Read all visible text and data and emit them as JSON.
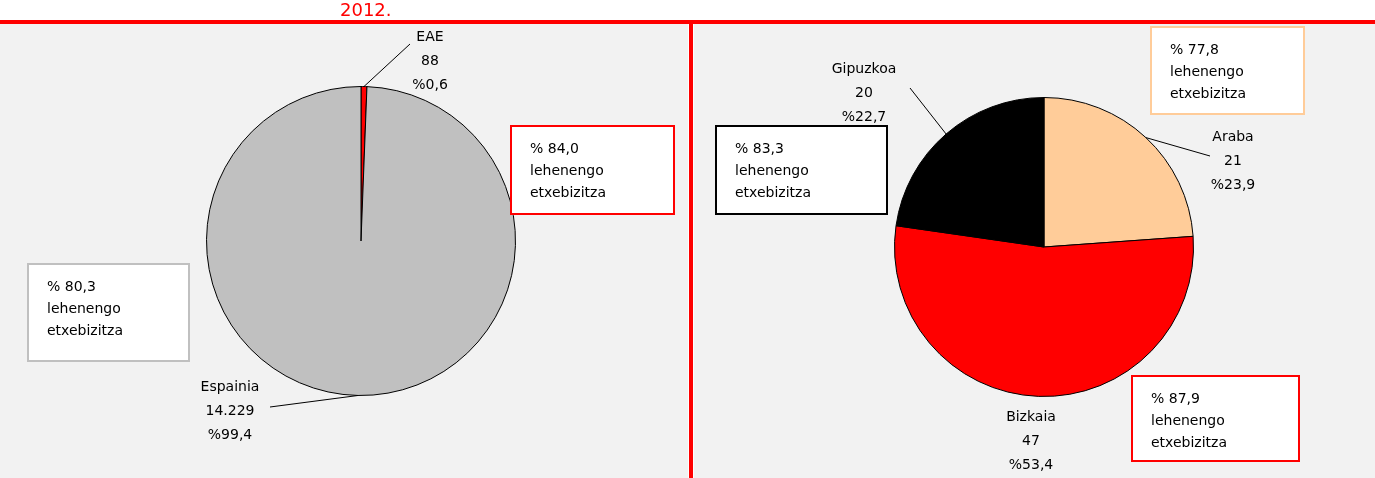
{
  "chart_data": [
    {
      "type": "pie",
      "title": "2012.",
      "categories": [
        "EAE",
        "Espainia"
      ],
      "values": [
        88,
        14229
      ],
      "colors": [
        "#ff0000",
        "#c0c0c0"
      ],
      "value_labels": [
        "88\n%0,6",
        "14.229\n%99,4"
      ],
      "legend": false,
      "annotations": [
        {
          "text": "% 84,0\nlehenengo\netxebizitza",
          "x": "EAE"
        },
        {
          "text": "% 80,3\nlehenengo\netxebizitza",
          "x": "Espainia"
        }
      ]
    },
    {
      "type": "pie",
      "categories": [
        "Araba",
        "Bizkaia",
        "Gipuzkoa"
      ],
      "values": [
        21,
        47,
        20
      ],
      "colors": [
        "#ffcc99",
        "#ff0000",
        "#000000"
      ],
      "value_labels": [
        "21\n%23,9",
        "47\n%53,4",
        "20\n%22,7"
      ],
      "legend": false,
      "annotations": [
        {
          "text": "% 77,8\nlehenengo\netxebizitza",
          "x": "Araba"
        },
        {
          "text": "% 87,9\nlehenengo\netxebizitza",
          "x": "Bizkaia"
        },
        {
          "text": "% 83,3\nlehenengo\netxebizitza",
          "x": "Gipuzkoa"
        }
      ]
    }
  ]
}
